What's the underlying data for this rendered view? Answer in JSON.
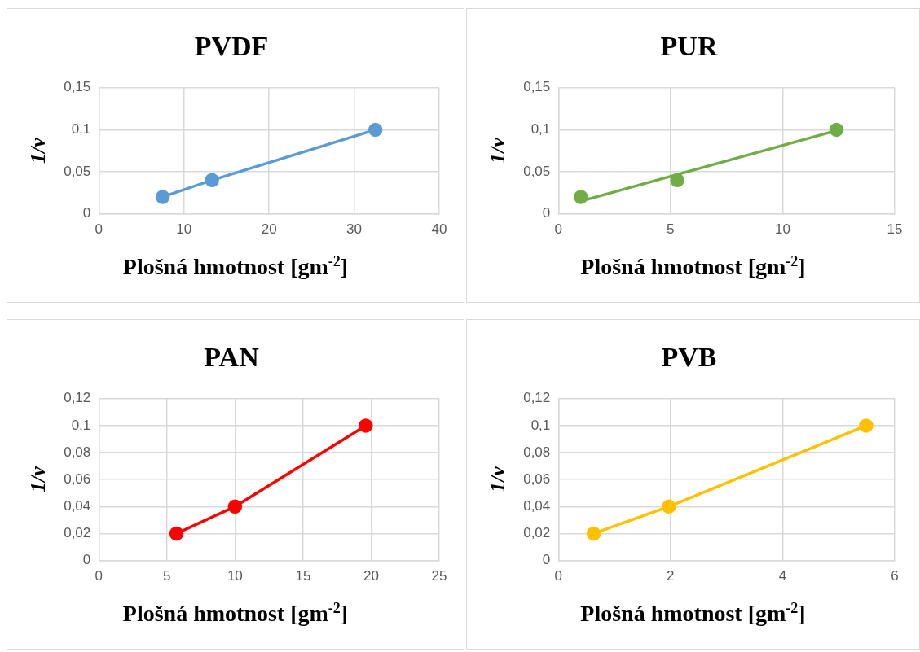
{
  "chart_data": [
    {
      "type": "line",
      "title": "PVDF",
      "xlabel": "Plošná hmotnost [gm$^{-2}$]",
      "ylabel": "1/v",
      "marker": "circle",
      "grid": true,
      "legend": false,
      "series": [
        {
          "color": "#5b9bd5",
          "x": [
            7.5,
            13.3,
            32.5
          ],
          "values": [
            0.02,
            0.04,
            0.1
          ]
        }
      ],
      "xlim": [
        0,
        40
      ],
      "xticks": [
        0,
        10,
        20,
        30,
        40
      ],
      "ylim": [
        0,
        0.15
      ],
      "yticks": [
        {
          "value": 0,
          "label": "0"
        },
        {
          "value": 0.05,
          "label": "0,05"
        },
        {
          "value": 0.1,
          "label": "0,1"
        },
        {
          "value": 0.15,
          "label": "0,15"
        }
      ]
    },
    {
      "type": "scatter",
      "title": "PUR",
      "xlabel": "Plošná hmotnost [gm$^{-2}$]",
      "ylabel": "1/v",
      "marker": "circle",
      "grid": true,
      "legend": false,
      "series": [
        {
          "color": "#70ad47",
          "x": [
            1.0,
            5.3,
            12.4
          ],
          "values": [
            0.02,
            0.04,
            0.1
          ]
        },
        {
          "type": "line",
          "marker": "none",
          "color": "#70ad47",
          "x": [
            1.0,
            12.4
          ],
          "values": [
            0.015,
            0.099
          ]
        }
      ],
      "xlim": [
        0,
        15
      ],
      "xticks": [
        0,
        5,
        10,
        15
      ],
      "ylim": [
        0,
        0.15
      ],
      "yticks": [
        {
          "value": 0,
          "label": "0"
        },
        {
          "value": 0.05,
          "label": "0,05"
        },
        {
          "value": 0.1,
          "label": "0,1"
        },
        {
          "value": 0.15,
          "label": "0,15"
        }
      ]
    },
    {
      "type": "line",
      "title": "PAN",
      "xlabel": "Plošná hmotnost [gm$^{-2}$]",
      "ylabel": "1/v",
      "marker": "circle",
      "grid": true,
      "legend": false,
      "series": [
        {
          "color": "#ff0000",
          "x": [
            5.7,
            10.0,
            19.6
          ],
          "values": [
            0.02,
            0.04,
            0.1
          ]
        }
      ],
      "xlim": [
        0,
        25
      ],
      "xticks": [
        0,
        5,
        10,
        15,
        20,
        25
      ],
      "ylim": [
        0,
        0.12
      ],
      "yticks": [
        {
          "value": 0,
          "label": "0"
        },
        {
          "value": 0.02,
          "label": "0,02"
        },
        {
          "value": 0.04,
          "label": "0,04"
        },
        {
          "value": 0.06,
          "label": "0,06"
        },
        {
          "value": 0.08,
          "label": "0,08"
        },
        {
          "value": 0.1,
          "label": "0,1"
        },
        {
          "value": 0.12,
          "label": "0,12"
        }
      ]
    },
    {
      "type": "line",
      "title": "PVB",
      "xlabel": "Plošná hmotnost [gm$^{-2}$]",
      "ylabel": "1/v",
      "marker": "circle",
      "grid": true,
      "legend": false,
      "series": [
        {
          "color": "#ffc000",
          "x": [
            0.63,
            1.97,
            5.49
          ],
          "values": [
            0.02,
            0.04,
            0.1
          ]
        }
      ],
      "xlim": [
        0,
        6
      ],
      "xticks": [
        0,
        2,
        4,
        6
      ],
      "ylim": [
        0,
        0.12
      ],
      "yticks": [
        {
          "value": 0,
          "label": "0"
        },
        {
          "value": 0.02,
          "label": "0,02"
        },
        {
          "value": 0.04,
          "label": "0,04"
        },
        {
          "value": 0.06,
          "label": "0,06"
        },
        {
          "value": 0.08,
          "label": "0,08"
        },
        {
          "value": 0.1,
          "label": "0,1"
        },
        {
          "value": 0.12,
          "label": "0,12"
        }
      ]
    }
  ]
}
